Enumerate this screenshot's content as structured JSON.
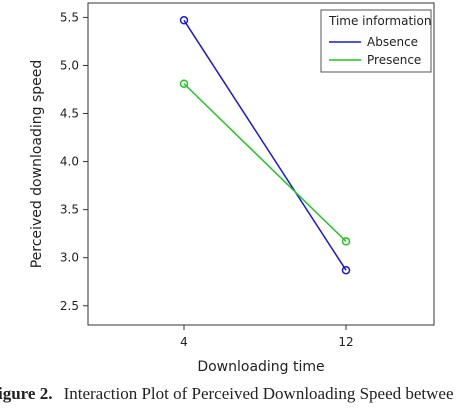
{
  "caption": {
    "prefix": "igure 2.",
    "text": "Interaction Plot of Perceived Downloading Speed betwee"
  },
  "chart_data": {
    "type": "line",
    "title": "",
    "xlabel": "Downloading time",
    "ylabel": "Perceived downloading speed",
    "categories": [
      "4",
      "12"
    ],
    "ylim": [
      2.3,
      5.65
    ],
    "yticks": [
      "2.5",
      "3.0",
      "3.5",
      "4.0",
      "4.5",
      "5.0",
      "5.5"
    ],
    "grid": false,
    "legend": {
      "title": "Time information",
      "placement": "top-right"
    },
    "series": [
      {
        "name": "Absence",
        "color": "#1a1acc",
        "values": [
          5.47,
          2.87
        ]
      },
      {
        "name": "Presence",
        "color": "#22c422",
        "values": [
          4.81,
          3.17
        ]
      }
    ]
  }
}
